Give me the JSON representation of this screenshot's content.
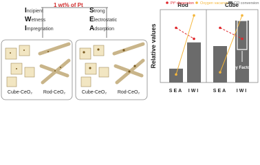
{
  "diagram": {
    "left_method": [
      "Incipient",
      "Wetness",
      "Impregnation"
    ],
    "right_method": [
      "Strong",
      "Electrostatic",
      "Adsorption"
    ],
    "loading": "1 wt% of Pt",
    "panels": [
      {
        "labels": [
          "Cube-CeO₂",
          "Rod-CeO₂"
        ]
      },
      {
        "labels": [
          "Cube-CeO₂",
          "Rod-CeO₂"
        ]
      }
    ]
  },
  "chart_data": {
    "type": "bar",
    "ylabel": "Relative values",
    "groups": [
      "Rod",
      "Cube"
    ],
    "categories": [
      "SEA",
      "IWI",
      "SEA",
      "IWI"
    ],
    "ylim": [
      0,
      1
    ],
    "series": [
      {
        "name": "CO conversion",
        "color": "#6b6b6b",
        "values": [
          0.19,
          0.55,
          0.5,
          0.85
        ]
      },
      {
        "name": "Pt⁰ dispersion",
        "color": "#e0262b",
        "values": [
          0.75,
          0.6,
          0.75,
          0.6
        ]
      },
      {
        "name": "Oxygen vacancy",
        "color": "#f4b63b",
        "values": [
          0.11,
          0.92,
          0.14,
          0.92
        ]
      }
    ],
    "annotation": "Key Factors"
  }
}
